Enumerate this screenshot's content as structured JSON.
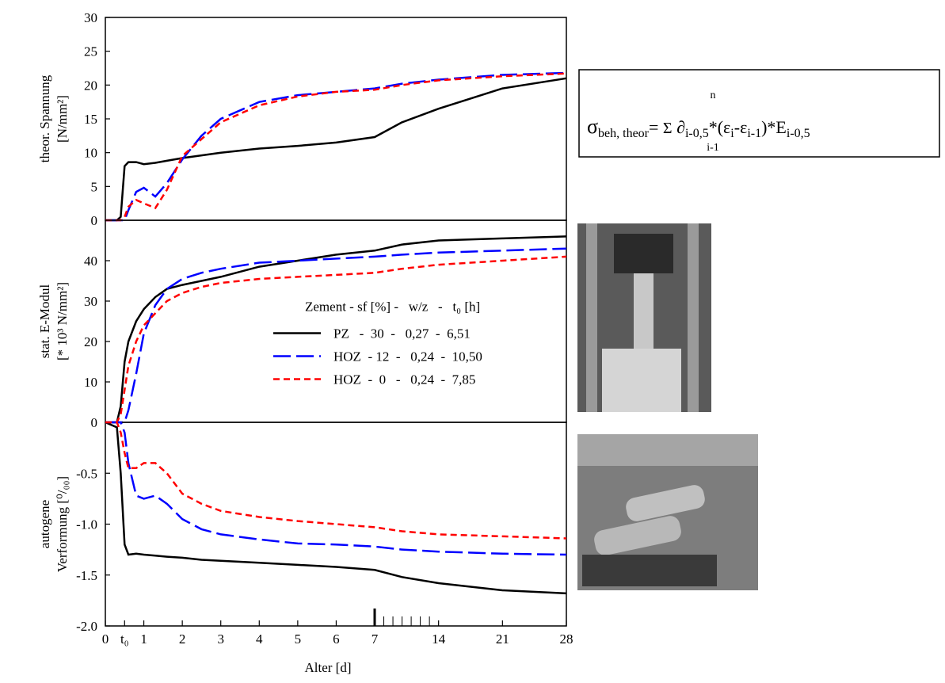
{
  "chart_data": [
    {
      "type": "line",
      "ylabel": [
        "theor. Spannung",
        "[N/mm²]"
      ],
      "x": [
        0,
        0.3,
        0.4,
        0.5,
        0.6,
        0.8,
        1,
        1.3,
        1.6,
        2,
        2.5,
        3,
        4,
        5,
        6,
        7,
        10,
        14,
        21,
        28
      ],
      "xlim": [
        0,
        28
      ],
      "xbreak": 7,
      "ylim": [
        0,
        30
      ],
      "yticks": [
        0,
        5,
        10,
        15,
        20,
        25,
        30
      ],
      "series": [
        {
          "color": "#000000",
          "style": "solid",
          "values": [
            0,
            0,
            0.5,
            8,
            8.6,
            8.6,
            8.3,
            8.5,
            8.8,
            9.2,
            9.6,
            10,
            10.6,
            11,
            11.5,
            12.3,
            14.5,
            16.5,
            19.5,
            21
          ]
        },
        {
          "color": "#0000ff",
          "style": "long-dash",
          "values": [
            0,
            0,
            0,
            0,
            1.5,
            4.2,
            4.8,
            3.5,
            5.5,
            9,
            12.5,
            15,
            17.5,
            18.5,
            19,
            19.5,
            20.2,
            20.8,
            21.5,
            21.8
          ]
        },
        {
          "color": "#ff0000",
          "style": "dash",
          "values": [
            0,
            0,
            0,
            0.5,
            2,
            3,
            2.5,
            1.8,
            4.5,
            9.5,
            12,
            14.5,
            17,
            18.3,
            19,
            19.3,
            20,
            20.7,
            21.3,
            21.7
          ]
        }
      ]
    },
    {
      "type": "line",
      "ylabel": [
        "stat. E-Modul",
        "[* 10³ N/mm²]"
      ],
      "x": [
        0,
        0.3,
        0.4,
        0.5,
        0.6,
        0.8,
        1,
        1.3,
        1.6,
        2,
        2.5,
        3,
        4,
        5,
        6,
        7,
        10,
        14,
        21,
        28
      ],
      "xlim": [
        0,
        28
      ],
      "xbreak": 7,
      "ylim": [
        0,
        50
      ],
      "yticks": [
        0,
        10,
        20,
        30,
        40
      ],
      "legend": "center-right",
      "legend_title": "Zement - sf [%] -   w/z   -   t₀ [h]",
      "series": [
        {
          "name": "PZ   -  30  -   0,27  -  6,51",
          "color": "#000000",
          "style": "solid",
          "values": [
            0,
            0,
            4,
            15,
            20,
            25,
            28,
            31,
            33,
            34,
            35,
            36,
            38.5,
            40,
            41.5,
            42.5,
            44,
            45,
            45.5,
            46
          ]
        },
        {
          "name": "HOZ  - 12  -   0,24  -  10,50",
          "color": "#0000ff",
          "style": "long-dash",
          "values": [
            0,
            0,
            0,
            0,
            3,
            12,
            22,
            29,
            33,
            35.5,
            37,
            38,
            39.5,
            40,
            40.5,
            41,
            41.5,
            42,
            42.5,
            43
          ]
        },
        {
          "name": "HOZ  -  0   -   0,24  -  7,85",
          "color": "#ff0000",
          "style": "dash",
          "values": [
            0,
            0,
            2,
            8,
            14,
            20,
            24,
            27,
            30,
            32,
            33.5,
            34.5,
            35.5,
            36,
            36.5,
            37,
            38,
            39,
            40,
            41
          ]
        }
      ]
    },
    {
      "type": "line",
      "ylabel": [
        "autogene",
        "Verformung [⁰/₀₀]"
      ],
      "xlabel": "Alter [d]",
      "x": [
        0,
        0.3,
        0.4,
        0.5,
        0.6,
        0.8,
        1,
        1.3,
        1.6,
        2,
        2.5,
        3,
        4,
        5,
        6,
        7,
        10,
        14,
        21,
        28
      ],
      "xlim": [
        0,
        28
      ],
      "xbreak": 7,
      "xticks": [
        0,
        {
          "value": 0.5,
          "label": "t₀"
        },
        1,
        2,
        3,
        4,
        5,
        6,
        7,
        14,
        21,
        28
      ],
      "xminor": [
        8,
        9,
        10,
        11,
        12,
        13
      ],
      "ylim": [
        -2,
        0
      ],
      "yticks": [
        {
          "value": -2,
          "label": "-2.0"
        },
        -1.5,
        {
          "value": -1,
          "label": "-1.0"
        },
        -0.5
      ],
      "series": [
        {
          "color": "#000000",
          "style": "solid",
          "values": [
            0,
            -0.05,
            -0.5,
            -1.2,
            -1.3,
            -1.29,
            -1.3,
            -1.31,
            -1.32,
            -1.33,
            -1.35,
            -1.36,
            -1.38,
            -1.4,
            -1.42,
            -1.45,
            -1.52,
            -1.58,
            -1.65,
            -1.68
          ]
        },
        {
          "color": "#0000ff",
          "style": "long-dash",
          "values": [
            0,
            0,
            0,
            -0.1,
            -0.4,
            -0.72,
            -0.75,
            -0.72,
            -0.8,
            -0.95,
            -1.05,
            -1.1,
            -1.15,
            -1.19,
            -1.2,
            -1.22,
            -1.25,
            -1.27,
            -1.29,
            -1.3
          ]
        },
        {
          "color": "#ff0000",
          "style": "dash",
          "values": [
            0,
            0,
            -0.1,
            -0.3,
            -0.45,
            -0.45,
            -0.4,
            -0.4,
            -0.5,
            -0.7,
            -0.8,
            -0.87,
            -0.93,
            -0.97,
            -1.0,
            -1.03,
            -1.07,
            -1.1,
            -1.12,
            -1.14
          ]
        }
      ]
    }
  ],
  "formula": {
    "parts": [
      "σ",
      "beh, theor",
      "= ",
      "Σ",
      " ∂",
      "i-0,5",
      "*(ε",
      "i",
      "-ε",
      "i-1",
      ")*E",
      "i-0,5"
    ],
    "upper": "n",
    "lower": "i-1"
  }
}
